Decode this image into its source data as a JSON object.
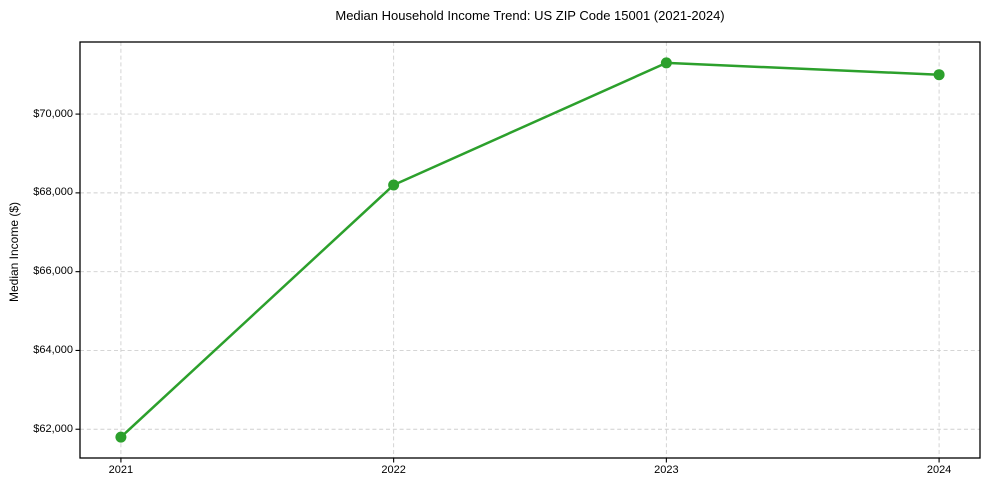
{
  "chart_data": {
    "type": "line",
    "title": "Median Household Income Trend: US ZIP Code 15001 (2021-2024)",
    "xlabel": "",
    "ylabel": "Median Income ($)",
    "x": [
      2021,
      2022,
      2023,
      2024
    ],
    "x_tick_labels": [
      "2021",
      "2022",
      "2023",
      "2024"
    ],
    "series": [
      {
        "name": "Median Household Income",
        "values": [
          61800,
          68200,
          71300,
          71000
        ]
      }
    ],
    "y_ticks": [
      62000,
      64000,
      66000,
      68000,
      70000
    ],
    "y_tick_labels": [
      "$62,000",
      "$64,000",
      "$66,000",
      "$68,000",
      "$70,000"
    ],
    "xlim": [
      2020.85,
      2024.15
    ],
    "ylim": [
      61270,
      71830
    ],
    "grid": true,
    "legend": "none",
    "colors": {
      "line": "#2ca02c",
      "marker": "#2ca02c",
      "grid": "#cfcfcf",
      "axis": "#000000",
      "background": "#ffffff"
    }
  }
}
